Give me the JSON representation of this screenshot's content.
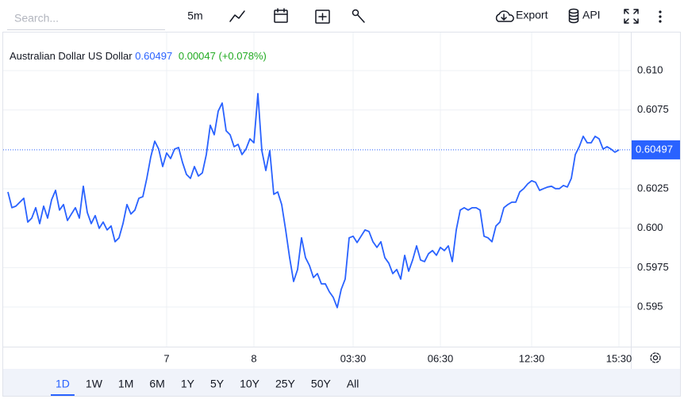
{
  "toolbar": {
    "search_placeholder": "Search...",
    "interval": "5m",
    "export": "Export",
    "api": "API"
  },
  "chart_data": {
    "type": "line",
    "title": "Australian Dollar US Dollar",
    "change": 0.00047,
    "change_pct": "(+0.078%)",
    "color": "#2962ff",
    "grid": true,
    "xlim": [
      -0.4,
      157
    ],
    "xticks": [
      {
        "value": 40,
        "label": "7"
      },
      {
        "value": 62,
        "label": "8"
      },
      {
        "value": 87,
        "label": "03:30"
      },
      {
        "value": 109,
        "label": "06:30"
      },
      {
        "value": 132,
        "label": "12:30"
      },
      {
        "value": 154,
        "label": "15:30"
      }
    ],
    "ylim": [
      0.5925,
      0.6125
    ],
    "yticks": [
      {
        "value": 0.61,
        "label": "0.610"
      },
      0.6075,
      0.6025,
      {
        "value": 0.6,
        "label": "0.600"
      },
      0.5975,
      0.595
    ],
    "values": [
      0.6023,
      0.6013,
      0.6014,
      0.60165,
      0.6019,
      0.60039,
      0.60064,
      0.6013,
      0.60029,
      0.6014,
      0.60064,
      0.6018,
      0.6024,
      0.60115,
      0.6015,
      0.60049,
      0.6009,
      0.6013,
      0.60064,
      0.60266,
      0.601,
      0.60029,
      0.6008,
      0.59999,
      0.60039,
      0.59989,
      0.60014,
      0.59914,
      0.59939,
      0.60029,
      0.6015,
      0.6009,
      0.60115,
      0.6019,
      0.602,
      0.60316,
      0.60452,
      0.60552,
      0.60502,
      0.60391,
      0.60477,
      0.60442,
      0.60502,
      0.60512,
      0.60417,
      0.60341,
      0.60316,
      0.60391,
      0.60331,
      0.60351,
      0.60467,
      0.60653,
      0.60593,
      0.60743,
      0.60794,
      0.60618,
      0.60593,
      0.60517,
      0.60532,
      0.60467,
      0.60502,
      0.60567,
      0.60542,
      0.60854,
      0.60492,
      0.60366,
      0.60492,
      0.60215,
      0.6023,
      0.6015,
      0.59989,
      0.59813,
      0.59662,
      0.59738,
      0.59939,
      0.59813,
      0.59763,
      0.59687,
      0.59712,
      0.59647,
      0.59647,
      0.59597,
      0.59561,
      0.59496,
      0.59612,
      0.59677,
      0.59939,
      0.59949,
      0.59909,
      0.59949,
      0.59989,
      0.59979,
      0.59914,
      0.59878,
      0.59914,
      0.59813,
      0.59778,
      0.59712,
      0.59738,
      0.59677,
      0.59828,
      0.59727,
      0.59798,
      0.59888,
      0.59798,
      0.59788,
      0.59838,
      0.59858,
      0.59828,
      0.59878,
      0.59858,
      0.59888,
      0.59788,
      0.59989,
      0.60115,
      0.6013,
      0.60115,
      0.6013,
      0.6013,
      0.60115,
      0.59949,
      0.59939,
      0.59914,
      0.60014,
      0.60039,
      0.6013,
      0.6015,
      0.60165,
      0.60165,
      0.6023,
      0.60251,
      0.60281,
      0.60301,
      0.60291,
      0.6024,
      0.60251,
      0.60261,
      0.60266,
      0.60251,
      0.60251,
      0.60271,
      0.60261,
      0.60316,
      0.60467,
      0.60517,
      0.60583,
      0.60542,
      0.60542,
      0.60583,
      0.60567,
      0.60502,
      0.60517,
      0.60502,
      0.60482,
      0.60497
    ]
  },
  "ranges": [
    "1D",
    "1W",
    "1M",
    "6M",
    "1Y",
    "5Y",
    "10Y",
    "25Y",
    "50Y",
    "All"
  ]
}
